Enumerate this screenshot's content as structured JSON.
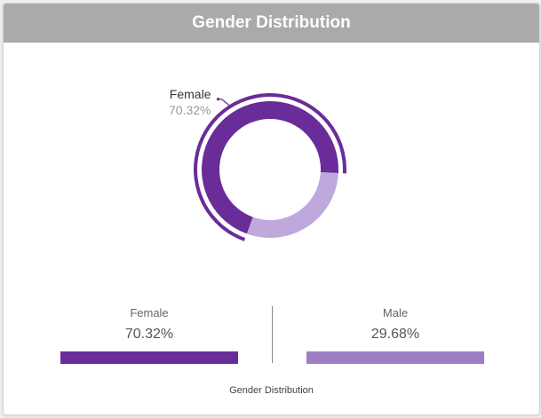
{
  "header": {
    "title": "Gender Distribution"
  },
  "colors": {
    "female": "#6a2c99",
    "male": "#bfa8dc",
    "female_bar": "#6a2c99",
    "male_bar": "#9d7ec3"
  },
  "chart_data": {
    "type": "pie",
    "title": "Gender Distribution",
    "series": [
      {
        "name": "Female",
        "value": 70.32,
        "label": "70.32%"
      },
      {
        "name": "Male",
        "value": 29.68,
        "label": "29.68%"
      }
    ],
    "callout": {
      "name": "Female",
      "value_label": "70.32%"
    }
  },
  "stats": {
    "female": {
      "label": "Female",
      "value": "70.32%",
      "fraction": 1.0
    },
    "male": {
      "label": "Male",
      "value": "29.68%",
      "fraction": 1.0
    }
  },
  "footer": {
    "caption": "Gender Distribution"
  }
}
